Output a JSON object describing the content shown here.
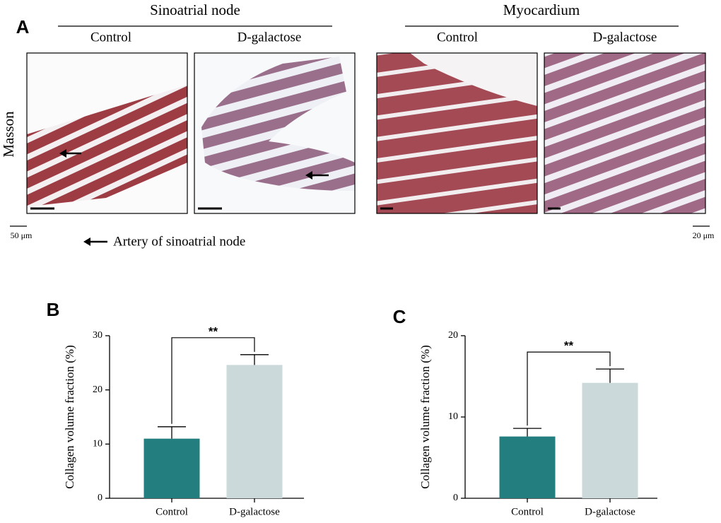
{
  "panel_labels": [
    "A",
    "B",
    "C"
  ],
  "panel_a": {
    "groups": [
      {
        "title": "Sinoatrial node",
        "conditions": [
          "Control",
          "D-galactose"
        ]
      },
      {
        "title": "Myocardium",
        "conditions": [
          "Control",
          "D-galactose"
        ]
      }
    ],
    "stain": "Masson",
    "scale_bars": [
      "50 μm",
      "20 μm"
    ],
    "legend": "Artery of sinoatrial node"
  },
  "chart_data": [
    {
      "type": "bar",
      "categories": [
        "Control",
        "D-galactose"
      ],
      "values": [
        11.0,
        24.6
      ],
      "errors": [
        2.2,
        1.9
      ],
      "colors": [
        "#237f7f",
        "#cbd9da"
      ],
      "ylabel": "Collagen volume fraction (%)",
      "ylim": [
        0,
        30
      ],
      "yticks": [
        0,
        10,
        20,
        30
      ],
      "significance": "**"
    },
    {
      "type": "bar",
      "categories": [
        "Control",
        "D-galactose"
      ],
      "values": [
        7.6,
        14.2
      ],
      "errors": [
        1.0,
        1.7
      ],
      "colors": [
        "#237f7f",
        "#cbd9da"
      ],
      "ylabel": "Collagen volume fraction (%)",
      "ylim": [
        0,
        20
      ],
      "yticks": [
        0,
        10,
        20
      ],
      "significance": "**"
    }
  ]
}
